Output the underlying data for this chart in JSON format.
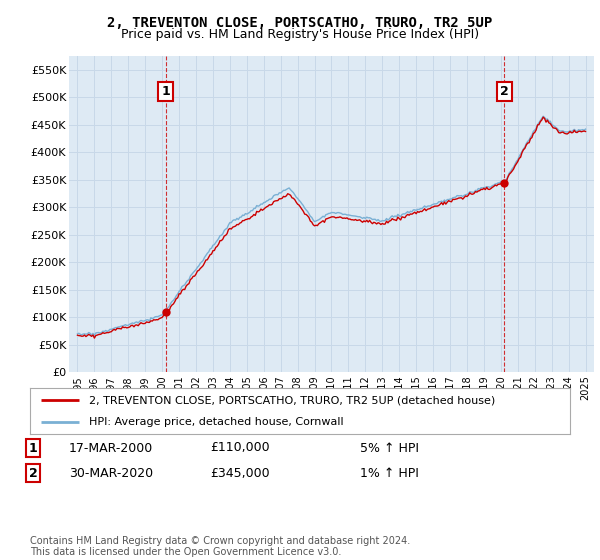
{
  "title": "2, TREVENTON CLOSE, PORTSCATHO, TRURO, TR2 5UP",
  "subtitle": "Price paid vs. HM Land Registry's House Price Index (HPI)",
  "ylim": [
    0,
    575000
  ],
  "yticks": [
    0,
    50000,
    100000,
    150000,
    200000,
    250000,
    300000,
    350000,
    400000,
    450000,
    500000,
    550000
  ],
  "ytick_labels": [
    "£0",
    "£50K",
    "£100K",
    "£150K",
    "£200K",
    "£250K",
    "£300K",
    "£350K",
    "£400K",
    "£450K",
    "£500K",
    "£550K"
  ],
  "house_color": "#cc0000",
  "hpi_color": "#7ab0d4",
  "legend_house": "2, TREVENTON CLOSE, PORTSCATHO, TRURO, TR2 5UP (detached house)",
  "legend_hpi": "HPI: Average price, detached house, Cornwall",
  "t1_year": 2000.21,
  "t2_year": 2020.21,
  "p1": 110000,
  "p2": 345000,
  "transaction1_date": "17-MAR-2000",
  "transaction1_price": "£110,000",
  "transaction1_pct": "5% ↑ HPI",
  "transaction2_date": "30-MAR-2020",
  "transaction2_price": "£345,000",
  "transaction2_pct": "1% ↑ HPI",
  "footnote": "Contains HM Land Registry data © Crown copyright and database right 2024.\nThis data is licensed under the Open Government Licence v3.0.",
  "bg_color": "#ffffff",
  "grid_color": "#c8d8e8",
  "plot_bg_color": "#deeaf4"
}
